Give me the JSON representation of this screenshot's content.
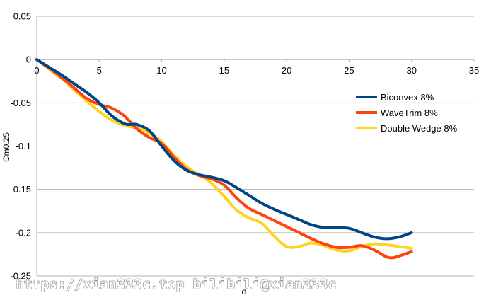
{
  "chart_data": {
    "type": "line",
    "title": "",
    "xlabel": "α",
    "ylabel": "Cm0.25",
    "xlim": [
      0,
      35
    ],
    "ylim": [
      -0.25,
      0.05
    ],
    "x_ticks": [
      "0",
      "5",
      "10",
      "15",
      "20",
      "25",
      "30",
      "35"
    ],
    "y_ticks": [
      "0.05",
      "0",
      "-0.05",
      "-0.1",
      "-0.15",
      "-0.2",
      "-0.25"
    ],
    "grid": "horizontal",
    "legend_position": "right",
    "series": [
      {
        "name": "Biconvex 8%",
        "color": "#004586",
        "points": [
          [
            0,
            0
          ],
          [
            1,
            -0.009
          ],
          [
            2,
            -0.018
          ],
          [
            3,
            -0.028
          ],
          [
            4,
            -0.038
          ],
          [
            5,
            -0.05
          ],
          [
            6,
            -0.065
          ],
          [
            7,
            -0.074
          ],
          [
            7.5,
            -0.075
          ],
          [
            8,
            -0.075
          ],
          [
            9,
            -0.082
          ],
          [
            10,
            -0.1
          ],
          [
            11,
            -0.117
          ],
          [
            12,
            -0.128
          ],
          [
            13,
            -0.133
          ],
          [
            14,
            -0.136
          ],
          [
            15,
            -0.14
          ],
          [
            16,
            -0.148
          ],
          [
            17,
            -0.157
          ],
          [
            18,
            -0.166
          ],
          [
            19,
            -0.173
          ],
          [
            20,
            -0.179
          ],
          [
            21,
            -0.185
          ],
          [
            22,
            -0.191
          ],
          [
            23,
            -0.194
          ],
          [
            24,
            -0.194
          ],
          [
            25,
            -0.195
          ],
          [
            26,
            -0.2
          ],
          [
            27,
            -0.205
          ],
          [
            28,
            -0.207
          ],
          [
            29,
            -0.205
          ],
          [
            30,
            -0.2
          ]
        ]
      },
      {
        "name": "WaveTrim 8%",
        "color": "#ff420e",
        "points": [
          [
            0,
            0
          ],
          [
            1,
            -0.01
          ],
          [
            2,
            -0.021
          ],
          [
            3,
            -0.033
          ],
          [
            4,
            -0.045
          ],
          [
            5,
            -0.052
          ],
          [
            6,
            -0.056
          ],
          [
            7,
            -0.065
          ],
          [
            8,
            -0.08
          ],
          [
            9,
            -0.09
          ],
          [
            10,
            -0.097
          ],
          [
            11,
            -0.113
          ],
          [
            12,
            -0.127
          ],
          [
            13,
            -0.134
          ],
          [
            14,
            -0.138
          ],
          [
            15,
            -0.145
          ],
          [
            16,
            -0.16
          ],
          [
            17,
            -0.172
          ],
          [
            18,
            -0.179
          ],
          [
            19,
            -0.186
          ],
          [
            20,
            -0.193
          ],
          [
            21,
            -0.2
          ],
          [
            22,
            -0.207
          ],
          [
            23,
            -0.213
          ],
          [
            24,
            -0.217
          ],
          [
            25,
            -0.217
          ],
          [
            26,
            -0.215
          ],
          [
            27,
            -0.22
          ],
          [
            28,
            -0.228
          ],
          [
            28.5,
            -0.229
          ],
          [
            29,
            -0.227
          ],
          [
            30,
            -0.222
          ]
        ]
      },
      {
        "name": "Double Wedge 8%",
        "color": "#ffd320",
        "points": [
          [
            0,
            0
          ],
          [
            1,
            -0.011
          ],
          [
            2,
            -0.022
          ],
          [
            3,
            -0.035
          ],
          [
            4,
            -0.048
          ],
          [
            5,
            -0.06
          ],
          [
            6,
            -0.07
          ],
          [
            7,
            -0.076
          ],
          [
            8,
            -0.079
          ],
          [
            9,
            -0.085
          ],
          [
            10,
            -0.095
          ],
          [
            11,
            -0.111
          ],
          [
            12,
            -0.124
          ],
          [
            13,
            -0.133
          ],
          [
            14,
            -0.143
          ],
          [
            15,
            -0.158
          ],
          [
            16,
            -0.174
          ],
          [
            17,
            -0.183
          ],
          [
            18,
            -0.189
          ],
          [
            19,
            -0.204
          ],
          [
            20,
            -0.216
          ],
          [
            21,
            -0.216
          ],
          [
            22,
            -0.212
          ],
          [
            23,
            -0.215
          ],
          [
            24,
            -0.22
          ],
          [
            25,
            -0.221
          ],
          [
            26,
            -0.216
          ],
          [
            27,
            -0.213
          ],
          [
            28,
            -0.214
          ],
          [
            29,
            -0.216
          ],
          [
            30,
            -0.218
          ]
        ]
      }
    ]
  },
  "watermark": {
    "text": "https://xian333c.top bilibili@xian333c"
  }
}
